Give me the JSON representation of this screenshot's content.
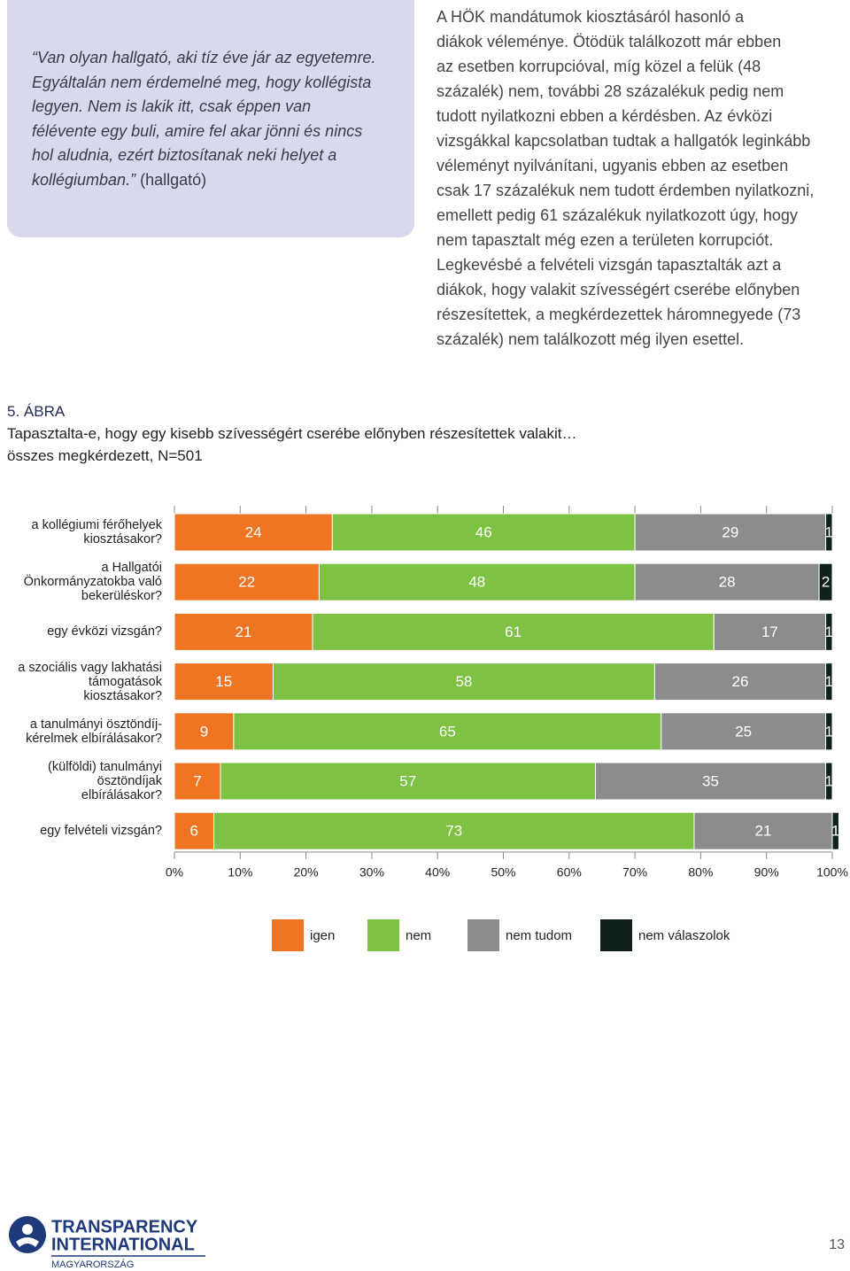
{
  "quote": {
    "text": "“Van olyan hallgató, aki tíz éve jár az egyetemre.\nEgyáltalán nem érdemelné meg, hogy kollégista\nlegyen. Nem is lakik itt, csak éppen van\nfélévente egy buli, amire fel akar jönni és nincs\nhol aludnia, ezért biztosítanak neki helyet a\nkollégiumban.”",
    "attribution": "(hallgató)"
  },
  "paragraph": "A HÖK mandátumok kiosztásáról hasonló a\ndiákok véleménye. Ötödük találkozott már ebben\naz esetben korrupcióval, míg közel a felük (48\nszázalék) nem, további 28 százalékuk pedig nem\ntudott nyilatkozni ebben a kérdésben. Az évközi\nvizsgákkal kapcsolatban tudtak a hallgatók leginkább\nvéleményt nyilvánítani, ugyanis ebben az esetben\ncsak 17 százalékuk nem tudott érdemben nyilatkozni,\nemellett pedig 61 százalékuk nyilatkozott úgy, hogy\nnem tapasztalt még ezen a területen korrupciót.\nLegkevésbé a felvételi vizsgán tapasztalták azt a\ndiákok, hogy valakit szívességért cserébe előnyben\nrészesítettek, a megkérdezettek háromnegyede (73\nszázalék) nem találkozott még ilyen esettel.",
  "figure": {
    "label": "5. ÁBRA",
    "title": "Tapasztalta-e, hogy egy kisebb szívességért cserébe előnyben részesítettek valakit…",
    "subtitle": "összes megkérdezett, N=501"
  },
  "chart_data": {
    "type": "bar",
    "orientation": "horizontal",
    "stacked": true,
    "categories": [
      "a kollégiumi férőhelyek\nkiosztásakor?",
      "a Hallgatói\nÖnkormányzatokba való\nbekerüléskor?",
      "egy évközi vizsgán?",
      "a szociális vagy lakhatási\ntámogatások\nkiosztásakor?",
      "a tanulmányi ösztöndíj-\nkérelmek elbírálásakor?",
      "(külföldi) tanulmányi\nösztöndíjak\nelbírálásakor?",
      "egy felvételi vizsgán?"
    ],
    "series": [
      {
        "name": "igen",
        "color": "#f07522",
        "values": [
          24,
          22,
          21,
          15,
          9,
          7,
          6
        ]
      },
      {
        "name": "nem",
        "color": "#7dc243",
        "values": [
          46,
          48,
          61,
          58,
          65,
          57,
          73
        ]
      },
      {
        "name": "nem tudom",
        "color": "#8a8c8e",
        "values": [
          29,
          28,
          17,
          26,
          25,
          35,
          21
        ]
      },
      {
        "name": "nem válaszolok",
        "color": "#0f2219",
        "values": [
          1,
          2,
          1,
          1,
          1,
          1,
          1
        ]
      }
    ],
    "xlim": [
      0,
      100
    ],
    "xticks": [
      {
        "value": 0,
        "label": "0%"
      },
      {
        "value": 10,
        "label": "10%"
      },
      {
        "value": 20,
        "label": "20%"
      },
      {
        "value": 30,
        "label": "30%"
      },
      {
        "value": 40,
        "label": "40%"
      },
      {
        "value": 50,
        "label": "50%"
      },
      {
        "value": 60,
        "label": "60%"
      },
      {
        "value": 70,
        "label": "70%"
      },
      {
        "value": 80,
        "label": "80%"
      },
      {
        "value": 90,
        "label": "90%"
      },
      {
        "value": 100,
        "label": "100%"
      }
    ],
    "legend": "bottom"
  },
  "footer": {
    "logo_line1": "TRANSPARENCY",
    "logo_line2": "INTERNATIONAL",
    "logo_line3": "MAGYARORSZÁG",
    "page_number": "13"
  }
}
